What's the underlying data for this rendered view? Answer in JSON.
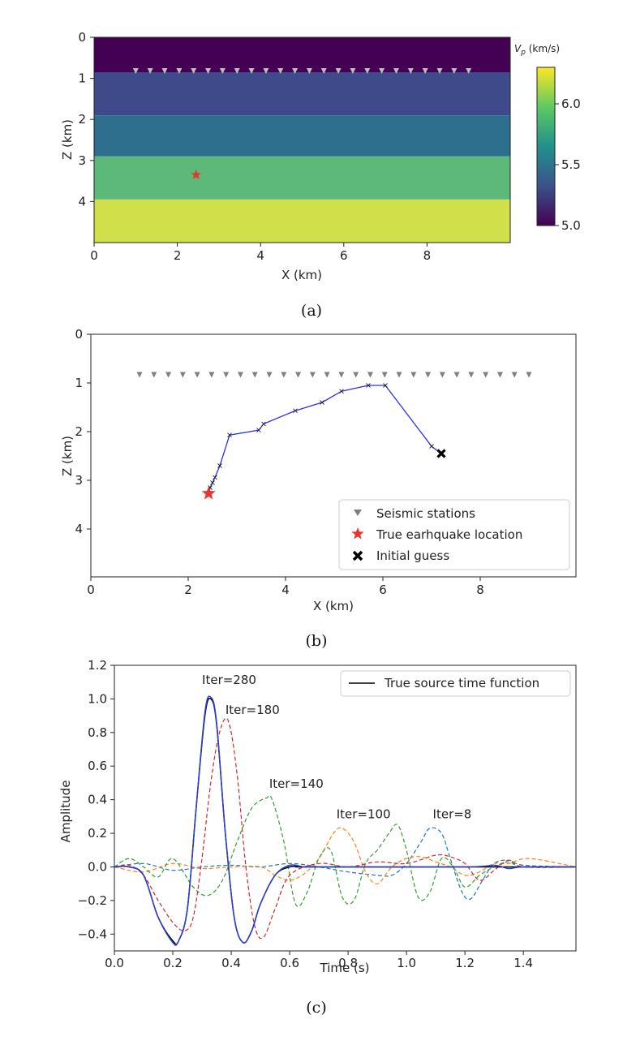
{
  "captions": [
    "(a)",
    "(b)",
    "(c)"
  ],
  "chart_data": [
    {
      "type": "heatmap",
      "xlabel": "X (km)",
      "ylabel": "Z (km)",
      "xlim": [
        0,
        10
      ],
      "ylim": [
        5,
        0
      ],
      "xticks": [
        "0",
        "2",
        "4",
        "6",
        "8"
      ],
      "yticks": [
        "0",
        "1",
        "2",
        "3",
        "4"
      ],
      "layers": [
        {
          "z_top": 0.0,
          "z_bottom": 0.85,
          "vp": 5.0,
          "color": "#440154"
        },
        {
          "z_top": 0.85,
          "z_bottom": 1.9,
          "vp": 5.3,
          "color": "#3f4a8a"
        },
        {
          "z_top": 1.9,
          "z_bottom": 2.9,
          "vp": 5.5,
          "color": "#2f6f8e"
        },
        {
          "z_top": 2.9,
          "z_bottom": 3.95,
          "vp": 5.8,
          "color": "#5cb97a"
        },
        {
          "z_top": 3.95,
          "z_bottom": 5.0,
          "vp": 6.25,
          "color": "#cfe04a"
        }
      ],
      "stations": {
        "x_start": 1.0,
        "x_end": 9.0,
        "count": 24,
        "z": 0.82,
        "color": "#bdbdbd"
      },
      "source": {
        "x": 2.45,
        "z": 3.35,
        "color": "#e8352c"
      },
      "colorbar": {
        "label": "V_p (km/s)",
        "label_main": "V",
        "label_sub": "p",
        "label_rest": " (km/s)",
        "range": [
          5.0,
          6.3
        ],
        "ticks": [
          "5.0",
          "5.5",
          "6.0"
        ],
        "tick_values": [
          5.0,
          5.5,
          6.0
        ],
        "colors": [
          "#440154",
          "#3b528b",
          "#21918c",
          "#5ec962",
          "#fde725"
        ]
      }
    },
    {
      "type": "scatter",
      "xlabel": "X (km)",
      "ylabel": "Z (km)",
      "xlim": [
        0,
        10
      ],
      "ylim": [
        5,
        0
      ],
      "xticks": [
        "0",
        "2",
        "4",
        "6",
        "8"
      ],
      "yticks": [
        "0",
        "1",
        "2",
        "3",
        "4"
      ],
      "stations": {
        "x_start": 1.0,
        "x_end": 9.0,
        "count": 28,
        "z": 0.8,
        "color": "#7f7f7f"
      },
      "path": {
        "color": "#2d2ff0",
        "x": [
          7.2,
          7.0,
          6.05,
          5.7,
          5.15,
          4.75,
          4.2,
          3.55,
          3.45,
          2.85,
          2.65,
          2.55,
          2.5,
          2.45,
          2.42
        ],
        "z": [
          2.45,
          2.3,
          1.05,
          1.05,
          1.17,
          1.4,
          1.57,
          1.84,
          1.97,
          2.07,
          2.7,
          2.94,
          3.05,
          3.15,
          3.27
        ]
      },
      "true_location": {
        "x": 2.42,
        "z": 3.27,
        "color": "#e8352c"
      },
      "initial_guess": {
        "x": 7.2,
        "z": 2.45
      },
      "legend": {
        "placement": "bottom-right",
        "entries": [
          "Seismic stations",
          "True earhquake location",
          "Initial guess"
        ]
      }
    },
    {
      "type": "line",
      "xlabel": "Time (s)",
      "ylabel": "Amplitude",
      "xlim": [
        0,
        1.58
      ],
      "ylim": [
        -0.5,
        1.2
      ],
      "xticks": [
        "0.0",
        "0.2",
        "0.4",
        "0.6",
        "0.8",
        "1.0",
        "1.2",
        "1.4"
      ],
      "xtick_values": [
        0.0,
        0.2,
        0.4,
        0.6,
        0.8,
        1.0,
        1.2,
        1.4
      ],
      "yticks": [
        "−0.4",
        "−0.2",
        "0.0",
        "0.2",
        "0.4",
        "0.6",
        "0.8",
        "1.0",
        "1.2"
      ],
      "ytick_values": [
        -0.4,
        -0.2,
        0.0,
        0.2,
        0.4,
        0.6,
        0.8,
        1.0,
        1.2
      ],
      "legend": {
        "placement": "top-right",
        "entries": [
          "True source time function"
        ]
      },
      "series": [
        {
          "name": "True source time function",
          "color": "#000000",
          "dash": "solid",
          "x": [
            0.0,
            0.05,
            0.1,
            0.15,
            0.2,
            0.22,
            0.25,
            0.28,
            0.31,
            0.33,
            0.35,
            0.38,
            0.41,
            0.44,
            0.47,
            0.5,
            0.55,
            0.6,
            0.65,
            0.7,
            1.58
          ],
          "y": [
            0.0,
            0.0,
            -0.05,
            -0.3,
            -0.44,
            -0.44,
            -0.25,
            0.35,
            0.9,
            1.0,
            0.85,
            0.2,
            -0.3,
            -0.45,
            -0.38,
            -0.22,
            -0.05,
            0.0,
            0.0,
            0.0,
            0.0
          ]
        },
        {
          "label": "Iter=280",
          "color": "#2b3fd6",
          "dash": "solid",
          "x": [
            0.0,
            0.05,
            0.1,
            0.15,
            0.2,
            0.22,
            0.25,
            0.28,
            0.31,
            0.33,
            0.35,
            0.38,
            0.41,
            0.44,
            0.47,
            0.5,
            0.55,
            0.6,
            0.65,
            0.7,
            1.2,
            1.3,
            1.35,
            1.4,
            1.58
          ],
          "y": [
            0.0,
            0.0,
            -0.05,
            -0.3,
            -0.45,
            -0.44,
            -0.25,
            0.35,
            0.92,
            1.01,
            0.86,
            0.2,
            -0.3,
            -0.45,
            -0.38,
            -0.22,
            -0.05,
            0.01,
            0.0,
            0.0,
            0.0,
            0.01,
            -0.01,
            0.0,
            0.0
          ]
        },
        {
          "label": "Iter=180",
          "color": "#d62728",
          "dash": "dashed",
          "x": [
            0.0,
            0.05,
            0.1,
            0.15,
            0.2,
            0.24,
            0.27,
            0.3,
            0.33,
            0.36,
            0.39,
            0.42,
            0.45,
            0.48,
            0.51,
            0.55,
            0.6,
            0.7,
            0.8,
            0.9,
            1.0,
            1.1,
            1.15,
            1.2,
            1.25,
            1.3,
            1.35,
            1.4,
            1.58
          ],
          "y": [
            0.0,
            0.01,
            -0.05,
            -0.2,
            -0.33,
            -0.38,
            -0.3,
            0.05,
            0.5,
            0.8,
            0.87,
            0.55,
            0.0,
            -0.35,
            -0.42,
            -0.25,
            -0.05,
            0.02,
            0.0,
            0.03,
            0.02,
            0.07,
            0.06,
            0.02,
            -0.08,
            -0.02,
            0.04,
            0.0,
            0.0
          ]
        },
        {
          "label": "Iter=140",
          "color": "#2ca02c",
          "dash": "dashed",
          "x": [
            0.0,
            0.05,
            0.1,
            0.15,
            0.2,
            0.27,
            0.32,
            0.37,
            0.42,
            0.47,
            0.52,
            0.54,
            0.58,
            0.62,
            0.66,
            0.7,
            0.74,
            0.78,
            0.82,
            0.86,
            0.9,
            0.94,
            0.97,
            1.0,
            1.04,
            1.08,
            1.12,
            1.16,
            1.2,
            1.25,
            1.3,
            1.35,
            1.4,
            1.58
          ],
          "y": [
            0.0,
            0.05,
            0.0,
            -0.06,
            0.05,
            -0.12,
            -0.17,
            -0.08,
            0.15,
            0.35,
            0.41,
            0.4,
            0.15,
            -0.22,
            -0.15,
            0.05,
            0.1,
            -0.18,
            -0.2,
            0.02,
            0.1,
            0.2,
            0.25,
            0.1,
            -0.18,
            -0.15,
            0.05,
            0.0,
            -0.12,
            -0.05,
            0.0,
            0.03,
            0.0,
            0.0
          ]
        },
        {
          "label": "Iter=100",
          "color": "#ff7f0e",
          "dash": "dashed",
          "x": [
            0.0,
            0.1,
            0.2,
            0.3,
            0.4,
            0.5,
            0.55,
            0.6,
            0.65,
            0.7,
            0.75,
            0.78,
            0.82,
            0.86,
            0.9,
            0.95,
            1.0,
            1.05,
            1.1,
            1.15,
            1.2,
            1.25,
            1.3,
            1.35,
            1.42,
            1.58
          ],
          "y": [
            0.0,
            -0.03,
            0.02,
            -0.01,
            0.0,
            0.0,
            -0.05,
            -0.08,
            -0.04,
            0.05,
            0.2,
            0.23,
            0.15,
            -0.03,
            -0.1,
            0.0,
            0.05,
            0.06,
            0.03,
            0.0,
            -0.05,
            -0.03,
            0.02,
            0.02,
            0.05,
            0.0
          ]
        },
        {
          "label": "Iter=8",
          "color": "#1f77b4",
          "dash": "dashed",
          "x": [
            0.0,
            0.1,
            0.2,
            0.3,
            0.4,
            0.5,
            0.6,
            0.7,
            0.8,
            0.9,
            0.95,
            1.0,
            1.05,
            1.08,
            1.12,
            1.15,
            1.19,
            1.22,
            1.26,
            1.3,
            1.35,
            1.4,
            1.58
          ],
          "y": [
            0.0,
            0.02,
            -0.02,
            0.0,
            0.01,
            0.0,
            0.02,
            0.0,
            -0.03,
            -0.05,
            -0.05,
            0.02,
            0.15,
            0.23,
            0.2,
            0.05,
            -0.15,
            -0.19,
            -0.08,
            0.02,
            0.04,
            0.01,
            0.0
          ]
        }
      ],
      "annotations": [
        {
          "text": "Iter=280",
          "x": 0.3,
          "y": 1.09
        },
        {
          "text": "Iter=180",
          "x": 0.38,
          "y": 0.91
        },
        {
          "text": "Iter=140",
          "x": 0.53,
          "y": 0.47
        },
        {
          "text": "Iter=100",
          "x": 0.76,
          "y": 0.29
        },
        {
          "text": "Iter=8",
          "x": 1.09,
          "y": 0.29
        }
      ]
    }
  ]
}
